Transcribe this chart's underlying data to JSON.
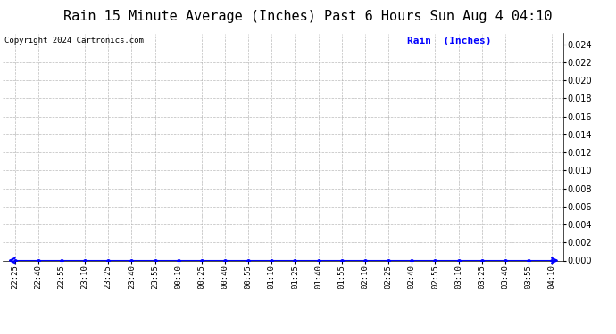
{
  "title": "Rain 15 Minute Average (Inches) Past 6 Hours Sun Aug 4 04:10",
  "title_fontsize": 11,
  "copyright_text": "Copyright 2024 Cartronics.com",
  "copyright_fontsize": 6.5,
  "legend_label": "Rain  (Inches)",
  "legend_color": "blue",
  "legend_fontsize": 8,
  "x_labels": [
    "22:25",
    "22:40",
    "22:55",
    "23:10",
    "23:25",
    "23:40",
    "23:55",
    "00:10",
    "00:25",
    "00:40",
    "00:55",
    "01:10",
    "01:25",
    "01:40",
    "01:55",
    "02:10",
    "02:25",
    "02:40",
    "02:55",
    "03:10",
    "03:25",
    "03:40",
    "03:55",
    "04:10"
  ],
  "y_values": [
    0,
    0,
    0,
    0,
    0,
    0,
    0,
    0,
    0,
    0,
    0,
    0,
    0,
    0,
    0,
    0,
    0,
    0,
    0,
    0,
    0,
    0,
    0,
    0
  ],
  "ylim": [
    0.0,
    0.0252
  ],
  "yticks": [
    0.0,
    0.002,
    0.004,
    0.006,
    0.008,
    0.01,
    0.012,
    0.014,
    0.016,
    0.018,
    0.02,
    0.022,
    0.024
  ],
  "line_color": "blue",
  "line_width": 1.5,
  "marker": "o",
  "marker_size": 2.5,
  "marker_color": "blue",
  "bg_color": "#ffffff",
  "grid_color": "#aaaaaa",
  "grid_style": "--",
  "grid_alpha": 0.8,
  "tick_labelsize": 6.5,
  "y_tick_labelsize": 7,
  "fig_width": 6.9,
  "fig_height": 3.75,
  "dpi": 100
}
